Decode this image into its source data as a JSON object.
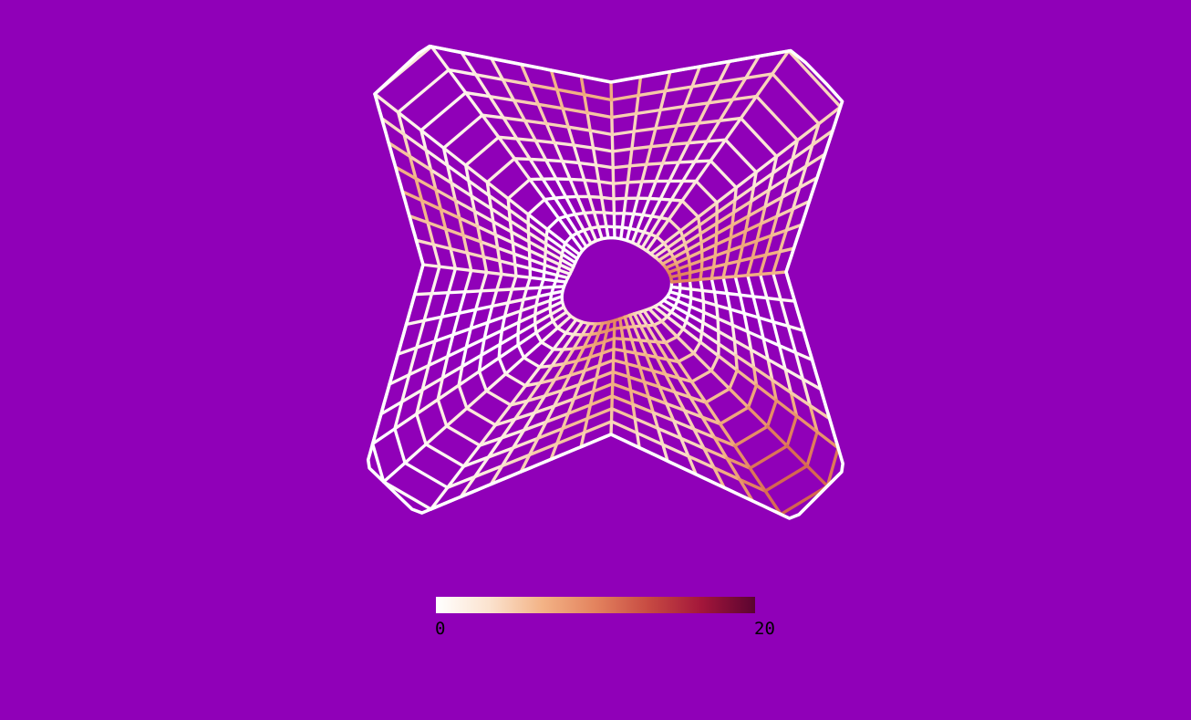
{
  "viewport": {
    "background": "#9000b8",
    "mesh_line_color": "#ffffff"
  },
  "colorbar": {
    "colormap": "white-orange-red-maroon",
    "stops": [
      "#ffffff",
      "#fbe3cf",
      "#f3b386",
      "#e3835e",
      "#c74a42",
      "#a3163a",
      "#5a0430"
    ],
    "min_label": "0",
    "max_label": "20"
  }
}
